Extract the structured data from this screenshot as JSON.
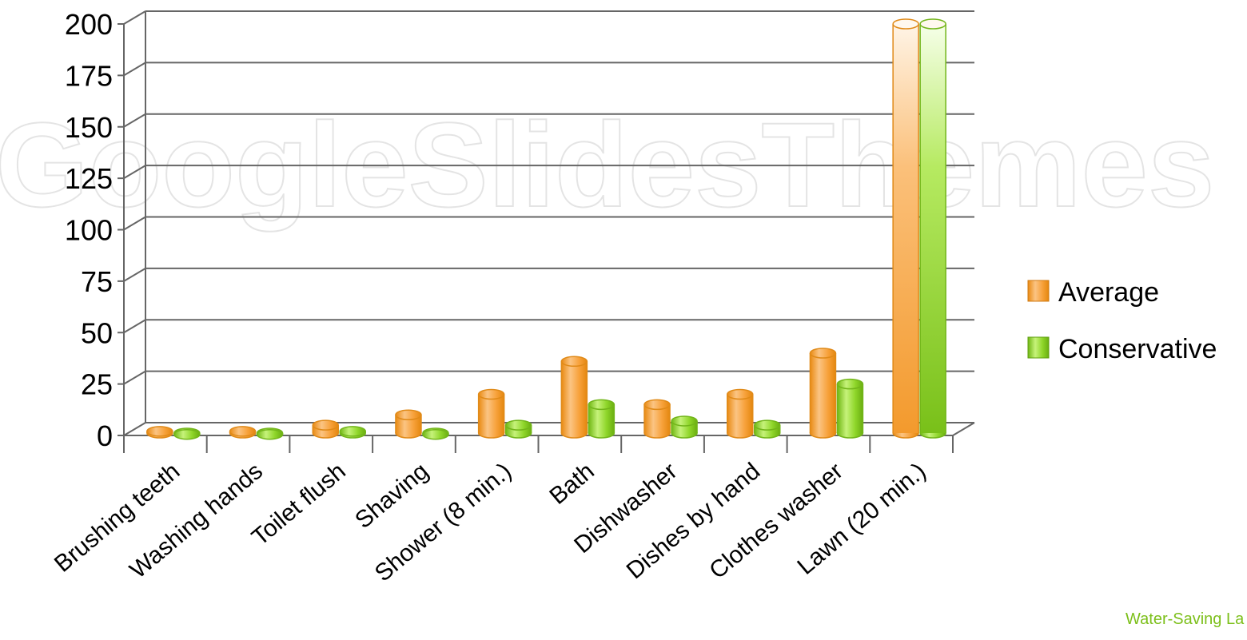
{
  "watermark": "GoogleSlidesThemes",
  "footer_text": "Water-Saving La",
  "colors": {
    "average": "#f7a13a",
    "conservative": "#8fd62a",
    "grid": "#666666"
  },
  "chart_data": {
    "type": "bar",
    "title": "",
    "xlabel": "",
    "ylabel": "",
    "ylim": [
      0,
      200
    ],
    "yticks": [
      0,
      25,
      50,
      75,
      100,
      125,
      150,
      175,
      200
    ],
    "grid": true,
    "legend_position": "right",
    "categories": [
      "Brushing teeth",
      "Washing hands",
      "Toilet flush",
      "Shaving",
      "Shower (8 min.)",
      "Bath",
      "Dishwasher",
      "Dishes by hand",
      "Clothes washer",
      "Lawn (20 min.)"
    ],
    "series": [
      {
        "name": "Average",
        "values": [
          2,
          2,
          5,
          10,
          20,
          36,
          15,
          20,
          40,
          200
        ]
      },
      {
        "name": "Conservative",
        "values": [
          0.5,
          0.5,
          2,
          0.5,
          5,
          15,
          7,
          5,
          25,
          200
        ]
      }
    ]
  }
}
